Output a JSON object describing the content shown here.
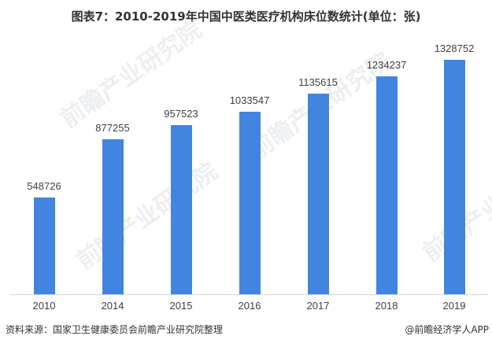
{
  "title": "图表7：2010-2019年中国中医类医疗机构床位数统计(单位：张)",
  "source": "资料来源：国家卫生健康委员会前瞻产业研究院整理",
  "credit": "@前瞻经济学人APP",
  "watermark": "前瞻产业研究院",
  "colors": {
    "bar": "#4185e0",
    "axis": "#d9d9d9",
    "text": "#404040"
  },
  "chart_data": {
    "type": "bar",
    "title": "图表7：2010-2019年中国中医类医疗机构床位数统计(单位：张)",
    "xlabel": "",
    "ylabel": "",
    "unit": "张",
    "categories": [
      "2010",
      "2014",
      "2015",
      "2016",
      "2017",
      "2018",
      "2019"
    ],
    "values": [
      548726,
      877255,
      957523,
      1033547,
      1135615,
      1234237,
      1328752
    ],
    "data_labels": [
      "548726",
      "877255",
      "957523",
      "1033547",
      "1135615",
      "1234237",
      "1328752"
    ],
    "ylim": [
      0,
      1328752
    ],
    "grid": false,
    "legend": null
  }
}
